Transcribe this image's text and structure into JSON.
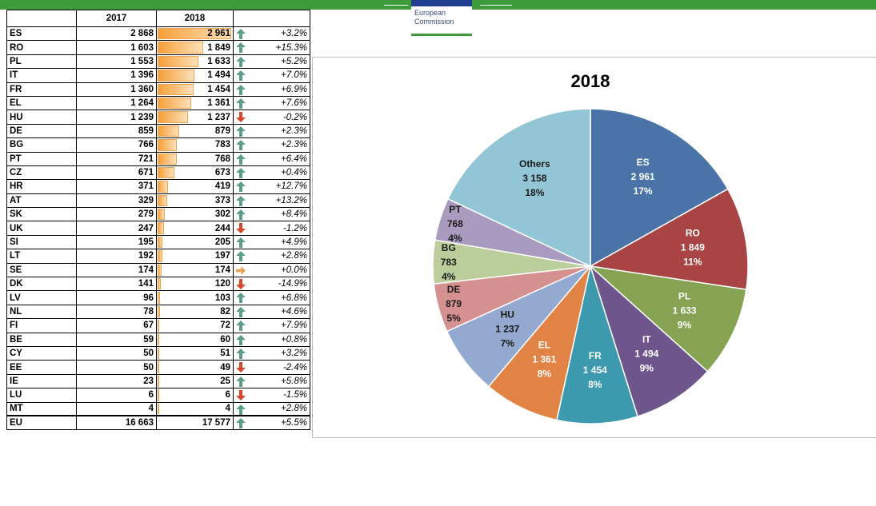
{
  "table": {
    "headers": [
      "",
      "2017",
      "2018",
      ""
    ],
    "rows": [
      {
        "code": "ES",
        "v2017": "2 868",
        "v2018": "2 961",
        "v2018_num": 2961,
        "dir": "up",
        "change": "+3.2%"
      },
      {
        "code": "RO",
        "v2017": "1 603",
        "v2018": "1 849",
        "v2018_num": 1849,
        "dir": "up",
        "change": "+15.3%"
      },
      {
        "code": "PL",
        "v2017": "1 553",
        "v2018": "1 633",
        "v2018_num": 1633,
        "dir": "up",
        "change": "+5.2%"
      },
      {
        "code": "IT",
        "v2017": "1 396",
        "v2018": "1 494",
        "v2018_num": 1494,
        "dir": "up",
        "change": "+7.0%"
      },
      {
        "code": "FR",
        "v2017": "1 360",
        "v2018": "1 454",
        "v2018_num": 1454,
        "dir": "up",
        "change": "+6.9%"
      },
      {
        "code": "EL",
        "v2017": "1 264",
        "v2018": "1 361",
        "v2018_num": 1361,
        "dir": "up",
        "change": "+7.6%"
      },
      {
        "code": "HU",
        "v2017": "1 239",
        "v2018": "1 237",
        "v2018_num": 1237,
        "dir": "down",
        "change": "-0.2%"
      },
      {
        "code": "DE",
        "v2017": "859",
        "v2018": "879",
        "v2018_num": 879,
        "dir": "up",
        "change": "+2.3%"
      },
      {
        "code": "BG",
        "v2017": "766",
        "v2018": "783",
        "v2018_num": 783,
        "dir": "up",
        "change": "+2.3%"
      },
      {
        "code": "PT",
        "v2017": "721",
        "v2018": "768",
        "v2018_num": 768,
        "dir": "up",
        "change": "+6.4%"
      },
      {
        "code": "CZ",
        "v2017": "671",
        "v2018": "673",
        "v2018_num": 673,
        "dir": "up",
        "change": "+0.4%"
      },
      {
        "code": "HR",
        "v2017": "371",
        "v2018": "419",
        "v2018_num": 419,
        "dir": "up",
        "change": "+12.7%"
      },
      {
        "code": "AT",
        "v2017": "329",
        "v2018": "373",
        "v2018_num": 373,
        "dir": "up",
        "change": "+13.2%"
      },
      {
        "code": "SK",
        "v2017": "279",
        "v2018": "302",
        "v2018_num": 302,
        "dir": "up",
        "change": "+8.4%"
      },
      {
        "code": "UK",
        "v2017": "247",
        "v2018": "244",
        "v2018_num": 244,
        "dir": "down",
        "change": "-1.2%"
      },
      {
        "code": "SI",
        "v2017": "195",
        "v2018": "205",
        "v2018_num": 205,
        "dir": "up",
        "change": "+4.9%"
      },
      {
        "code": "LT",
        "v2017": "192",
        "v2018": "197",
        "v2018_num": 197,
        "dir": "up",
        "change": "+2.8%"
      },
      {
        "code": "SE",
        "v2017": "174",
        "v2018": "174",
        "v2018_num": 174,
        "dir": "flat",
        "change": "+0.0%"
      },
      {
        "code": "DK",
        "v2017": "141",
        "v2018": "120",
        "v2018_num": 120,
        "dir": "down",
        "change": "-14.9%"
      },
      {
        "code": "LV",
        "v2017": "96",
        "v2018": "103",
        "v2018_num": 103,
        "dir": "up",
        "change": "+6.8%"
      },
      {
        "code": "NL",
        "v2017": "78",
        "v2018": "82",
        "v2018_num": 82,
        "dir": "up",
        "change": "+4.6%"
      },
      {
        "code": "FI",
        "v2017": "67",
        "v2018": "72",
        "v2018_num": 72,
        "dir": "up",
        "change": "+7.9%"
      },
      {
        "code": "BE",
        "v2017": "59",
        "v2018": "60",
        "v2018_num": 60,
        "dir": "up",
        "change": "+0.8%"
      },
      {
        "code": "CY",
        "v2017": "50",
        "v2018": "51",
        "v2018_num": 51,
        "dir": "up",
        "change": "+3.2%"
      },
      {
        "code": "EE",
        "v2017": "50",
        "v2018": "49",
        "v2018_num": 49,
        "dir": "down",
        "change": "-2.4%"
      },
      {
        "code": "IE",
        "v2017": "23",
        "v2018": "25",
        "v2018_num": 25,
        "dir": "up",
        "change": "+5.8%"
      },
      {
        "code": "LU",
        "v2017": "6",
        "v2018": "6",
        "v2018_num": 6,
        "dir": "down",
        "change": "-1.5%"
      },
      {
        "code": "MT",
        "v2017": "4",
        "v2018": "4",
        "v2018_num": 4,
        "dir": "up",
        "change": "+2.8%"
      }
    ],
    "total": {
      "code": "EU",
      "v2017": "16 663",
      "v2018": "17 577",
      "dir": "up",
      "change": "+5.5%"
    }
  },
  "logo": {
    "line1": "European",
    "line2": "Commission"
  },
  "colors": {
    "up_arrow": "#5a9e86",
    "down_arrow": "#d8452a",
    "flat_arrow": "#e8a455",
    "bar": "#f5a03a"
  },
  "chart_data": {
    "type": "pie",
    "title": "2018",
    "slices": [
      {
        "label": "ES",
        "value": 2961,
        "display_value": "2 961",
        "pct": "17%",
        "color": "#4a73a8"
      },
      {
        "label": "RO",
        "value": 1849,
        "display_value": "1 849",
        "pct": "11%",
        "color": "#a84443"
      },
      {
        "label": "PL",
        "value": 1633,
        "display_value": "1 633",
        "pct": "9%",
        "color": "#85a353"
      },
      {
        "label": "IT",
        "value": 1494,
        "display_value": "1 494",
        "pct": "9%",
        "color": "#6e568c"
      },
      {
        "label": "FR",
        "value": 1454,
        "display_value": "1 454",
        "pct": "8%",
        "color": "#3d9aae"
      },
      {
        "label": "EL",
        "value": 1361,
        "display_value": "1 361",
        "pct": "8%",
        "color": "#e08344"
      },
      {
        "label": "HU",
        "value": 1237,
        "display_value": "1 237",
        "pct": "7%",
        "color": "#93a9cf"
      },
      {
        "label": "DE",
        "value": 879,
        "display_value": "879",
        "pct": "5%",
        "color": "#d59190"
      },
      {
        "label": "BG",
        "value": 783,
        "display_value": "783",
        "pct": "4%",
        "color": "#bacd9a"
      },
      {
        "label": "PT",
        "value": 768,
        "display_value": "768",
        "pct": "4%",
        "color": "#a99bbf"
      },
      {
        "label": "Others",
        "value": 3158,
        "display_value": "3 158",
        "pct": "18%",
        "color": "#92c5d6"
      }
    ]
  }
}
